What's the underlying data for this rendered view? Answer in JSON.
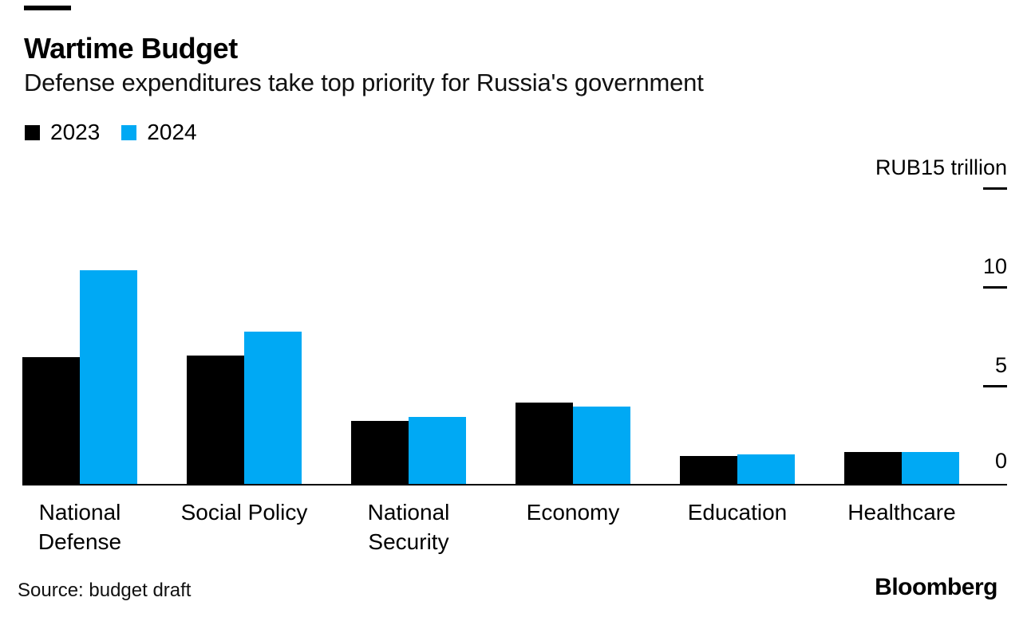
{
  "header": {
    "title": "Wartime Budget",
    "subtitle": "Defense expenditures take top priority for Russia's government"
  },
  "legend": [
    {
      "label": "2023",
      "color": "#000000"
    },
    {
      "label": "2024",
      "color": "#00A9F4"
    }
  ],
  "chart_data": {
    "type": "bar",
    "title": "Wartime Budget",
    "subtitle": "Defense expenditures take top priority for Russia's government",
    "unit": "RUB trillion",
    "categories": [
      "National Defense",
      "Social Policy",
      "National Security",
      "Economy",
      "Education",
      "Healthcare"
    ],
    "category_lines": [
      [
        "National",
        "Defense"
      ],
      [
        "Social Policy"
      ],
      [
        "National",
        "Security"
      ],
      [
        "Economy"
      ],
      [
        "Education"
      ],
      [
        "Healthcare"
      ]
    ],
    "series": [
      {
        "name": "2023",
        "color": "#000000",
        "values": [
          6.4,
          6.5,
          3.2,
          4.1,
          1.4,
          1.6
        ]
      },
      {
        "name": "2024",
        "color": "#00A9F4",
        "values": [
          10.8,
          7.7,
          3.4,
          3.9,
          1.5,
          1.6
        ]
      }
    ],
    "y_ticks": [
      {
        "label": "RUB15 trillion",
        "value": 15
      },
      {
        "label": "10",
        "value": 10
      },
      {
        "label": "5",
        "value": 5
      },
      {
        "label": "0",
        "value": 0
      }
    ],
    "ylim": [
      0,
      15
    ],
    "grid": false,
    "legend_position": "top-left",
    "axis_side": "right"
  },
  "footer": {
    "source": "Source: budget draft",
    "brand": "Bloomberg"
  }
}
